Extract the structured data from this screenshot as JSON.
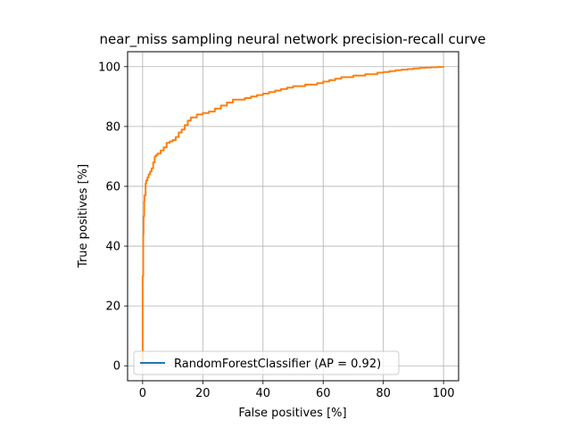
{
  "chart_data": {
    "type": "line",
    "title": "near_miss sampling neural network precision-recall curve",
    "xlabel": "False positives [%]",
    "ylabel": "True positives [%]",
    "xlim": [
      -5,
      105
    ],
    "ylim": [
      -5,
      105
    ],
    "x_ticks": [
      0,
      20,
      40,
      60,
      80,
      100
    ],
    "y_ticks": [
      0,
      20,
      40,
      60,
      80,
      100
    ],
    "grid": true,
    "legend_placement": "lower-left",
    "series": [
      {
        "name": "RandomForestClassifier (AP = 0.92)",
        "legend_color": "#1f77b4",
        "color": "#ff7f0e",
        "x": [
          0,
          0,
          0.2,
          0.3,
          0.5,
          0.6,
          1,
          1.2,
          1.6,
          2,
          2.5,
          3,
          3.5,
          4,
          4.5,
          5,
          6,
          7,
          8,
          9,
          10,
          11,
          12,
          13,
          14,
          15,
          16,
          18,
          20,
          22,
          24,
          26,
          28,
          30,
          32,
          34,
          36,
          38,
          40,
          42,
          44,
          46,
          48,
          50,
          52,
          54,
          56,
          58,
          60,
          62,
          64,
          66,
          68,
          70,
          72,
          74,
          76,
          78,
          80,
          82,
          84,
          86,
          88,
          90,
          92,
          94,
          96,
          98,
          100
        ],
        "y": [
          0,
          30,
          44,
          50,
          55,
          57,
          61,
          62,
          63,
          64,
          65,
          66,
          68,
          70,
          70.5,
          71,
          72,
          73,
          74.5,
          75,
          75.5,
          76.5,
          78,
          79,
          80.5,
          82,
          83,
          84,
          84.5,
          85,
          86,
          87,
          88,
          89,
          89,
          89.5,
          90,
          90.5,
          91,
          91.5,
          92,
          92.5,
          93,
          93.5,
          93.5,
          94,
          94,
          94.5,
          95,
          95.5,
          96,
          96.5,
          96.5,
          97,
          97,
          97.5,
          97.5,
          98,
          98.2,
          98.5,
          98.8,
          99,
          99.2,
          99.4,
          99.6,
          99.7,
          99.8,
          99.9,
          100
        ]
      }
    ]
  }
}
